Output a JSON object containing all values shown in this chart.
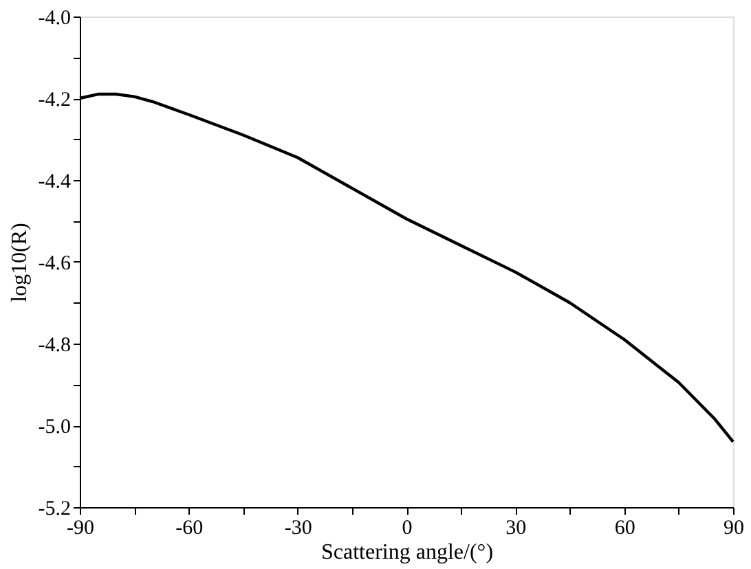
{
  "chart_data": {
    "type": "line",
    "xlabel": "Scattering angle/(°)",
    "ylabel": "log10(R)",
    "x": [
      -90,
      -85,
      -80,
      -75,
      -70,
      -60,
      -45,
      -30,
      -15,
      0,
      15,
      30,
      45,
      55,
      60,
      70,
      75,
      80,
      85,
      90
    ],
    "series": [
      {
        "color": "#000000",
        "values": [
          -4.2,
          -4.19,
          -4.19,
          -4.196,
          -4.208,
          -4.24,
          -4.29,
          -4.345,
          -4.42,
          -4.495,
          -4.56,
          -4.625,
          -4.7,
          -4.76,
          -4.79,
          -4.86,
          -4.895,
          -4.94,
          -4.985,
          -5.04
        ]
      }
    ],
    "xlim": [
      -90,
      90
    ],
    "xticks": [
      -90,
      {
        "value": -75,
        "label": null
      },
      -60,
      {
        "value": -45,
        "label": null
      },
      -30,
      {
        "value": -15,
        "label": null
      },
      0,
      {
        "value": 15,
        "label": null
      },
      30,
      {
        "value": 45,
        "label": null
      },
      60,
      {
        "value": 75,
        "label": null
      },
      90
    ],
    "ylim": [
      -5.2,
      -4.0
    ],
    "yticks": [
      {
        "value": -5.2,
        "label": "-5.2"
      },
      {
        "value": -5.1,
        "label": null
      },
      {
        "value": -5.0,
        "label": "-5.0"
      },
      {
        "value": -4.9,
        "label": null
      },
      {
        "value": -4.8,
        "label": "-4.8"
      },
      {
        "value": -4.7,
        "label": null
      },
      {
        "value": -4.6,
        "label": "-4.6"
      },
      {
        "value": -4.5,
        "label": null
      },
      {
        "value": -4.4,
        "label": "-4.4"
      },
      {
        "value": -4.3,
        "label": null
      },
      {
        "value": -4.2,
        "label": "-4.2"
      },
      {
        "value": -4.1,
        "label": null
      },
      {
        "value": -4.0,
        "label": "-4.0"
      }
    ],
    "grid": false,
    "legend": false,
    "marker": "none",
    "line_style": "solid"
  }
}
